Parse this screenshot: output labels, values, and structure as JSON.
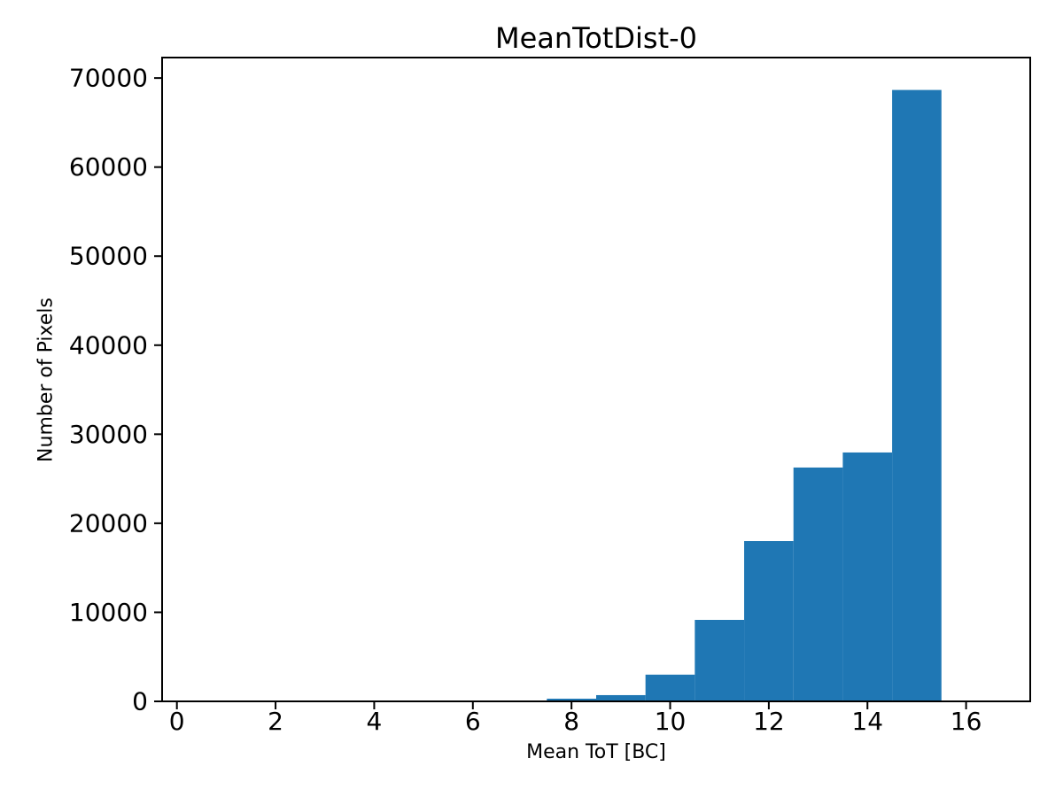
{
  "chart_data": {
    "type": "bar",
    "subtype": "histogram",
    "title": "MeanTotDist-0",
    "xlabel": "Mean ToT [BC]",
    "ylabel": "Number of Pixels",
    "bar_color": "#1f77b4",
    "axis_color": "#000000",
    "text_color": "#000000",
    "background_color": "#ffffff",
    "grid": false,
    "legend": false,
    "xlim": [
      -0.3,
      17.3
    ],
    "ylim": [
      0,
      72300
    ],
    "xticks": [
      0,
      2,
      4,
      6,
      8,
      10,
      12,
      14,
      16
    ],
    "xtick_labels": [
      "0",
      "2",
      "4",
      "6",
      "8",
      "10",
      "12",
      "14",
      "16"
    ],
    "yticks": [
      0,
      10000,
      20000,
      30000,
      40000,
      50000,
      60000,
      70000
    ],
    "ytick_labels": [
      "0",
      "10000",
      "20000",
      "30000",
      "40000",
      "50000",
      "60000",
      "70000"
    ],
    "bin_edges": [
      0.5,
      1.5,
      2.5,
      3.5,
      4.5,
      5.5,
      6.5,
      7.5,
      8.5,
      9.5,
      10.5,
      11.5,
      12.5,
      13.5,
      14.5,
      15.5,
      16.5
    ],
    "values": [
      0,
      0,
      0,
      0,
      0,
      0,
      0,
      300,
      700,
      3000,
      9150,
      18000,
      26260,
      27950,
      68660,
      0
    ]
  }
}
